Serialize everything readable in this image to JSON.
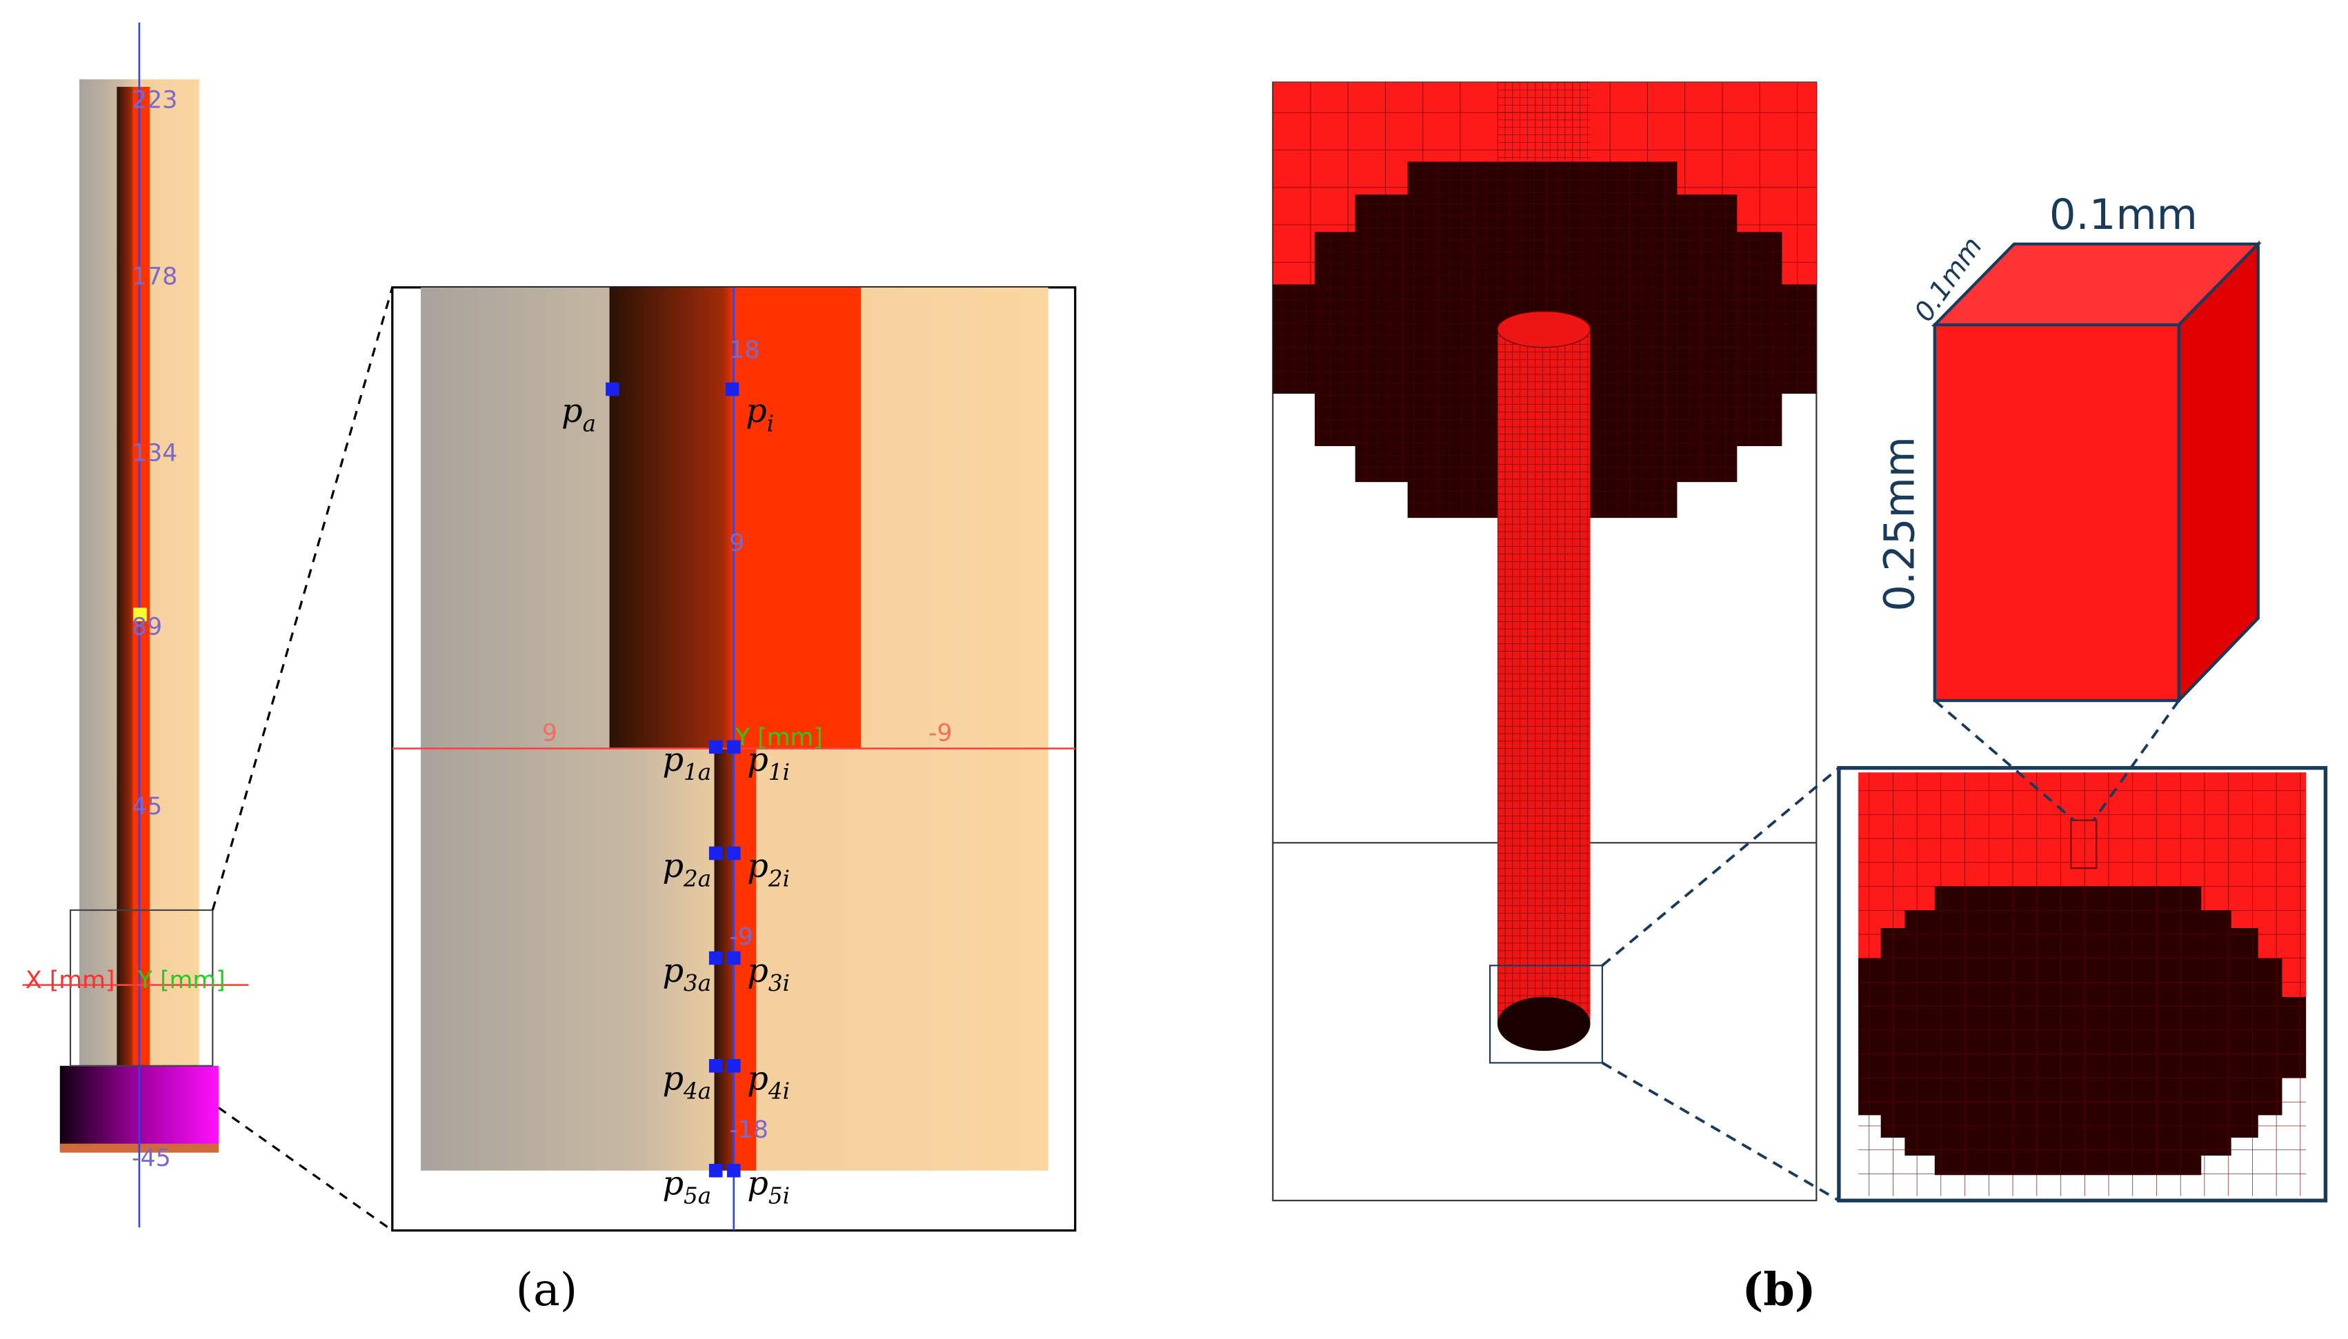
{
  "panel_a": {
    "label": "(a)",
    "overview": {
      "ticks": [
        "223",
        "178",
        "134",
        "89",
        "45",
        "-45"
      ],
      "x_axis": "X [mm]",
      "y_axis": "Y [mm]"
    },
    "zoom": {
      "ticks": [
        "18",
        "9",
        "-9",
        "-18"
      ],
      "x_ticks": [
        "9",
        "-9"
      ],
      "y_axis": "Y [mm]",
      "top_points": [
        {
          "base": "p",
          "sub": "a"
        },
        {
          "base": "p",
          "sub": "i"
        }
      ],
      "pairs": [
        [
          {
            "base": "p",
            "sub": "1a"
          },
          {
            "base": "p",
            "sub": "1i"
          }
        ],
        [
          {
            "base": "p",
            "sub": "2a"
          },
          {
            "base": "p",
            "sub": "2i"
          }
        ],
        [
          {
            "base": "p",
            "sub": "3a"
          },
          {
            "base": "p",
            "sub": "3i"
          }
        ],
        [
          {
            "base": "p",
            "sub": "4a"
          },
          {
            "base": "p",
            "sub": "4i"
          }
        ],
        [
          {
            "base": "p",
            "sub": "5a"
          },
          {
            "base": "p",
            "sub": "5i"
          }
        ]
      ]
    }
  },
  "panel_b": {
    "label": "(b)",
    "cell": {
      "width": "0.1mm",
      "depth": "0.1mm",
      "height": "0.25mm"
    }
  }
}
